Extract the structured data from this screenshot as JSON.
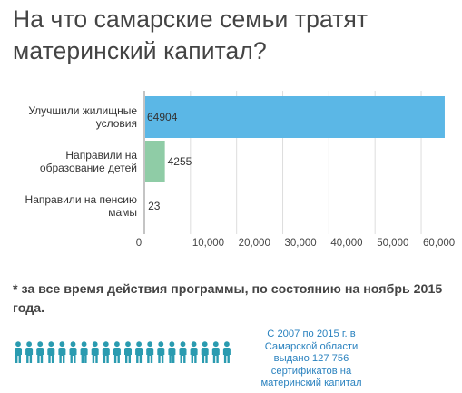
{
  "title": "На что самарские семьи тратят материнский капитал?",
  "chart_data": {
    "type": "bar",
    "orientation": "horizontal",
    "categories": [
      [
        "Улучшили жилищные",
        "условия"
      ],
      [
        "Направили на",
        "образование детей"
      ],
      [
        "Направили на пенсию",
        "мамы"
      ]
    ],
    "values": [
      64904,
      4255,
      23
    ],
    "value_labels": [
      "64904",
      "4255",
      "23"
    ],
    "colors": [
      "#5bb7e6",
      "#8fcca6",
      "#8fcca6"
    ],
    "x_ticks": [
      0,
      10000,
      20000,
      30000,
      40000,
      50000,
      60000
    ],
    "x_tick_labels": [
      "0",
      "10,000",
      "20,000",
      "30,000",
      "40,000",
      "50,000",
      "60,000"
    ],
    "xlim": [
      0,
      65500
    ],
    "grid": true
  },
  "footnote": "* за все время действия программы, по состоянию на ноябрь 2015 года.",
  "info_text": "С 2007 по 2015 г. в Самарской области выдано 127 756 сертификатов на материнский капитал",
  "people_icon_count": 20,
  "colors": {
    "people": "#2a9bb0",
    "info_text": "#2a82bf",
    "grid": "#dddddd"
  }
}
